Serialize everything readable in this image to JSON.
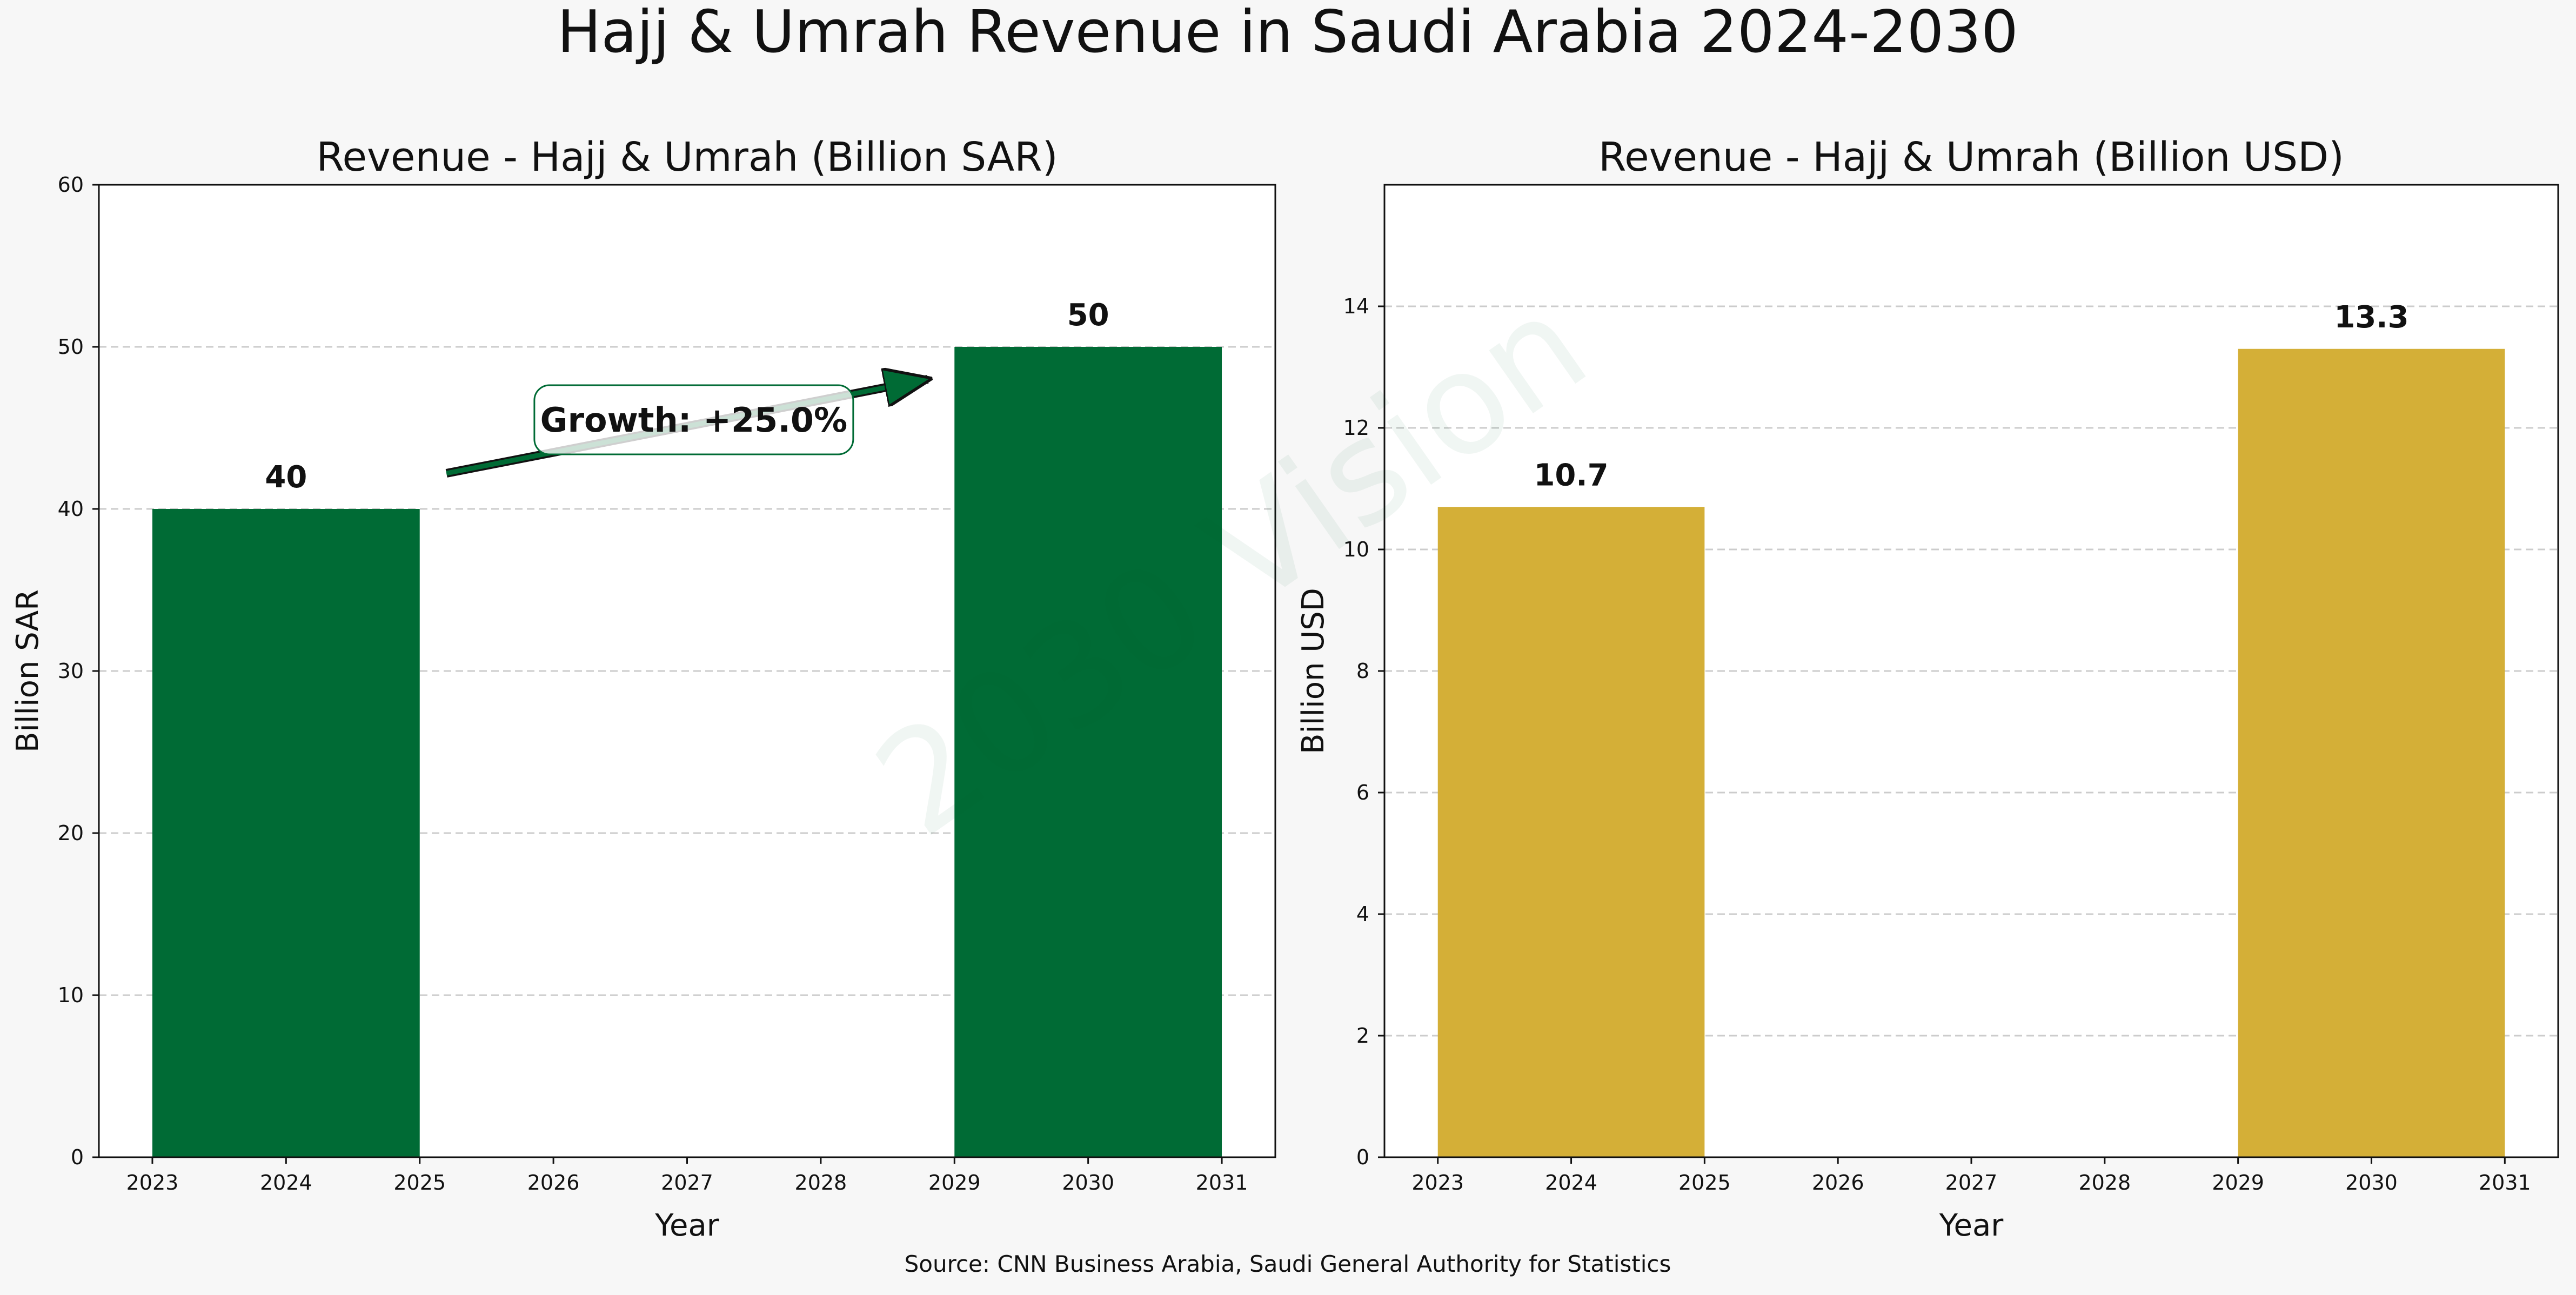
{
  "title": "Hajj & Umrah Revenue in Saudi Arabia 2024-2030",
  "source": "Source: CNN Business Arabia, Saudi General Authority for Statistics",
  "watermark": "2030 Vision",
  "colors": {
    "background": "#f7f7f7",
    "sar_bars": "#006b35",
    "usd_bars": "#d4af37",
    "grid": "#cccccc",
    "annotation_border": "#006b35"
  },
  "chart_data": [
    {
      "type": "bar",
      "title": "Revenue - Hajj & Umrah (Billion SAR)",
      "xlabel": "Year",
      "ylabel": "Billion SAR",
      "x": [
        2024,
        2030
      ],
      "values": [
        40,
        50
      ],
      "data_labels": [
        "40",
        "50"
      ],
      "bar_width_years": 2,
      "xlim": [
        2022.6,
        2031.4
      ],
      "ylim": [
        0,
        60
      ],
      "xticks": [
        2023,
        2024,
        2025,
        2026,
        2027,
        2028,
        2029,
        2030,
        2031
      ],
      "yticks": [
        0,
        10,
        20,
        30,
        40,
        50,
        60
      ],
      "grid": "horizontal dashed",
      "annotation": {
        "text": "Growth: +25.0%",
        "arrow_from": [
          2025.2,
          42.2
        ],
        "arrow_to": [
          2028.8,
          48
        ],
        "label_at": [
          2027.05,
          45.5
        ]
      },
      "color": "#006b35"
    },
    {
      "type": "bar",
      "title": "Revenue - Hajj & Umrah (Billion USD)",
      "xlabel": "Year",
      "ylabel": "Billion USD",
      "x": [
        2024,
        2030
      ],
      "values": [
        10.7,
        13.3
      ],
      "data_labels": [
        "10.7",
        "13.3"
      ],
      "bar_width_years": 2,
      "xlim": [
        2022.6,
        2031.4
      ],
      "ylim": [
        0,
        16
      ],
      "xticks": [
        2023,
        2024,
        2025,
        2026,
        2027,
        2028,
        2029,
        2030,
        2031
      ],
      "yticks": [
        0,
        2,
        4,
        6,
        8,
        10,
        12,
        14
      ],
      "grid": "horizontal dashed",
      "color": "#d4af37"
    }
  ]
}
